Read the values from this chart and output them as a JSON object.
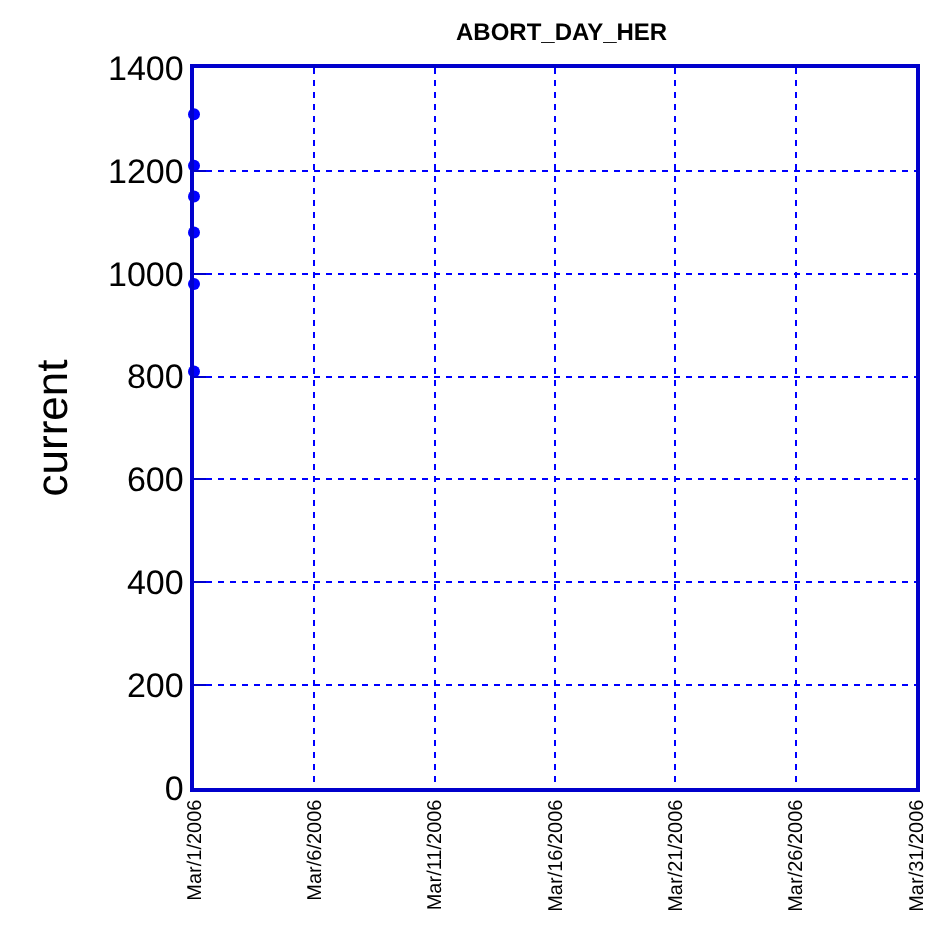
{
  "chart_data": {
    "type": "scatter",
    "title": "ABORT_DAY_HER",
    "ylabel": "current",
    "x": [
      "2006-03-01",
      "2006-03-01",
      "2006-03-01",
      "2006-03-01",
      "2006-03-01",
      "2006-03-01"
    ],
    "series": [
      {
        "color": "#0000ff",
        "values": [
          1310,
          1210,
          1150,
          1080,
          980,
          810
        ]
      }
    ],
    "xlim": [
      "2006-03-01",
      "2006-03-31"
    ],
    "xticks": [
      {
        "value": "2006-03-01",
        "label": "Mar/1/2006"
      },
      {
        "value": "2006-03-06",
        "label": "Mar/6/2006"
      },
      {
        "value": "2006-03-11",
        "label": "Mar/11/2006"
      },
      {
        "value": "2006-03-16",
        "label": "Mar/16/2006"
      },
      {
        "value": "2006-03-21",
        "label": "Mar/21/2006"
      },
      {
        "value": "2006-03-26",
        "label": "Mar/26/2006"
      },
      {
        "value": "2006-03-31",
        "label": "Mar/31/2006"
      }
    ],
    "ylim": [
      0,
      1400
    ],
    "yticks": [
      0,
      200,
      400,
      600,
      800,
      1000,
      1200,
      1400
    ],
    "grid": true,
    "marker": "circle"
  }
}
